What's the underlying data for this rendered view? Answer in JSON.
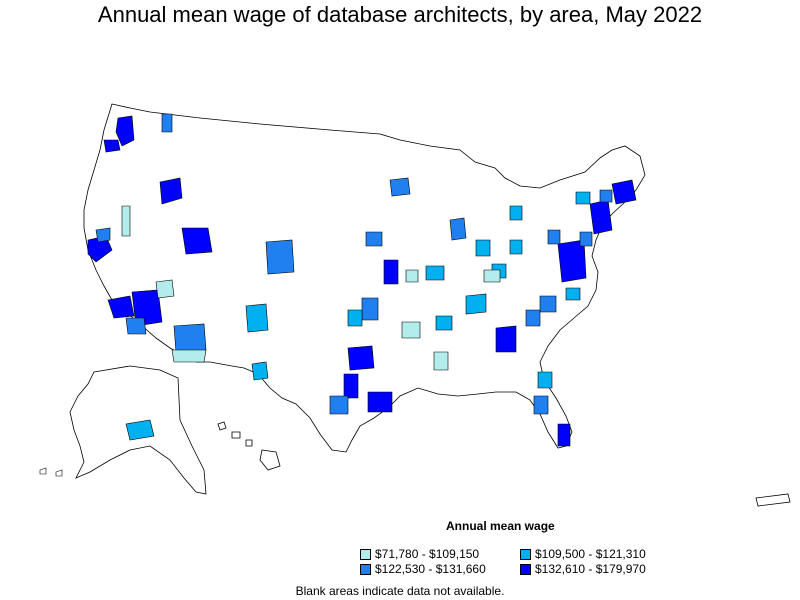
{
  "title": "Annual mean wage of database architects, by area, May 2022",
  "legend": {
    "title": "Annual mean wage",
    "items": [
      {
        "label": "$71,780 - $109,150",
        "color": "#b2ecec"
      },
      {
        "label": "$109,500 - $121,310",
        "color": "#00b0f0"
      },
      {
        "label": "$122,530 - $131,660",
        "color": "#2080f0"
      },
      {
        "label": "$132,610 - $179,970",
        "color": "#0000ff"
      }
    ]
  },
  "note": "Blank areas indicate data not available."
}
